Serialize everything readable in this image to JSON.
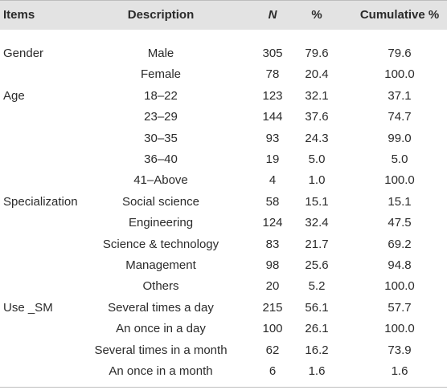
{
  "table": {
    "headers": [
      "Items",
      "Description",
      "N",
      "%",
      "Cumulative %"
    ],
    "groups": [
      {
        "item": "Gender",
        "rows": [
          [
            "Male",
            "305",
            "79.6",
            "79.6"
          ],
          [
            "Female",
            "78",
            "20.4",
            "100.0"
          ]
        ]
      },
      {
        "item": "Age",
        "rows": [
          [
            "18–22",
            "123",
            "32.1",
            "37.1"
          ],
          [
            "23–29",
            "144",
            "37.6",
            "74.7"
          ],
          [
            "30–35",
            "93",
            "24.3",
            "99.0"
          ],
          [
            "36–40",
            "19",
            "5.0",
            "5.0"
          ],
          [
            "41–Above",
            "4",
            "1.0",
            "100.0"
          ]
        ]
      },
      {
        "item": "Specialization",
        "rows": [
          [
            "Social science",
            "58",
            "15.1",
            "15.1"
          ],
          [
            "Engineering",
            "124",
            "32.4",
            "47.5"
          ],
          [
            "Science & technology",
            "83",
            "21.7",
            "69.2"
          ],
          [
            "Management",
            "98",
            "25.6",
            "94.8"
          ],
          [
            "Others",
            "20",
            "5.2",
            "100.0"
          ]
        ]
      },
      {
        "item": "Use _SM",
        "rows": [
          [
            "Several times a day",
            "215",
            "56.1",
            "57.7"
          ],
          [
            "An once in a day",
            "100",
            "26.1",
            "100.0"
          ],
          [
            "Several times in a month",
            "62",
            "16.2",
            "73.9"
          ],
          [
            "An once in a month",
            "6",
            "1.6",
            "1.6"
          ]
        ]
      }
    ]
  }
}
